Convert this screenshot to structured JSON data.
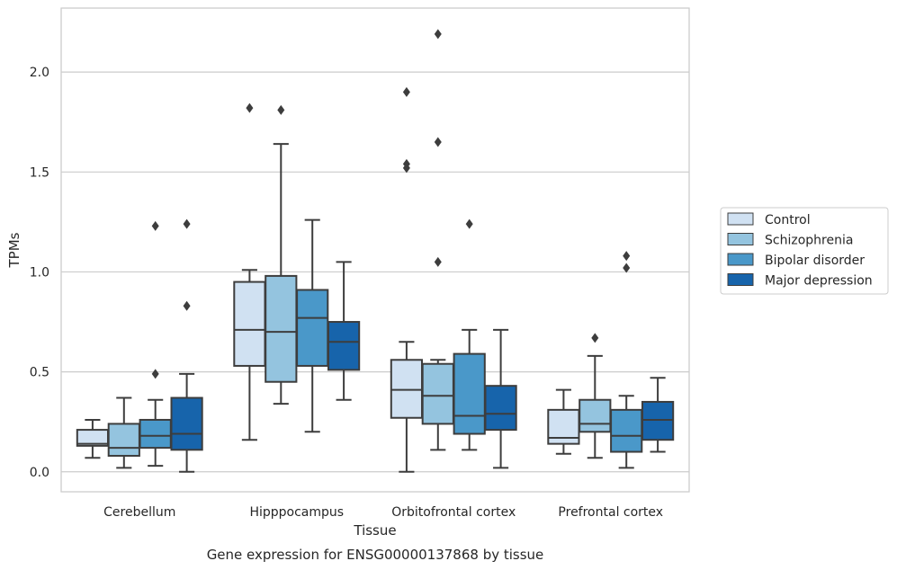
{
  "chart_data": {
    "type": "box",
    "title": "",
    "caption": "Gene expression for ENSG00000137868 by tissue",
    "xlabel": "Tissue",
    "ylabel": "TPMs",
    "ylim": [
      -0.1,
      2.32
    ],
    "yticks": [
      0.0,
      0.5,
      1.0,
      1.5,
      2.0
    ],
    "ytick_labels": [
      "0.0",
      "0.5",
      "1.0",
      "1.5",
      "2.0"
    ],
    "grid": true,
    "legend_position": "right",
    "categories": [
      "Cerebellum",
      "Hipppocampus",
      "Orbitofrontal cortex",
      "Prefrontal cortex"
    ],
    "series": [
      {
        "name": "Control",
        "color": "#d0e1f2",
        "boxes": [
          {
            "whislo": 0.07,
            "q1": 0.13,
            "med": 0.14,
            "q3": 0.21,
            "whishi": 0.26,
            "fliers": []
          },
          {
            "whislo": 0.16,
            "q1": 0.53,
            "med": 0.71,
            "q3": 0.95,
            "whishi": 1.01,
            "fliers": [
              1.82
            ]
          },
          {
            "whislo": 0.0,
            "q1": 0.27,
            "med": 0.41,
            "q3": 0.56,
            "whishi": 0.65,
            "fliers": [
              1.9,
              1.54,
              1.52
            ]
          },
          {
            "whislo": 0.09,
            "q1": 0.14,
            "med": 0.17,
            "q3": 0.31,
            "whishi": 0.41,
            "fliers": []
          }
        ]
      },
      {
        "name": "Schizophrenia",
        "color": "#94c4df",
        "boxes": [
          {
            "whislo": 0.02,
            "q1": 0.08,
            "med": 0.12,
            "q3": 0.24,
            "whishi": 0.37,
            "fliers": []
          },
          {
            "whislo": 0.34,
            "q1": 0.45,
            "med": 0.7,
            "q3": 0.98,
            "whishi": 1.64,
            "fliers": [
              1.81
            ]
          },
          {
            "whislo": 0.11,
            "q1": 0.24,
            "med": 0.38,
            "q3": 0.54,
            "whishi": 0.56,
            "fliers": [
              2.19,
              1.65,
              1.05
            ]
          },
          {
            "whislo": 0.07,
            "q1": 0.2,
            "med": 0.24,
            "q3": 0.36,
            "whishi": 0.58,
            "fliers": [
              0.67
            ]
          }
        ]
      },
      {
        "name": "Bipolar disorder",
        "color": "#4a98c9",
        "boxes": [
          {
            "whislo": 0.03,
            "q1": 0.12,
            "med": 0.18,
            "q3": 0.26,
            "whishi": 0.36,
            "fliers": [
              1.23,
              0.49
            ]
          },
          {
            "whislo": 0.2,
            "q1": 0.53,
            "med": 0.77,
            "q3": 0.91,
            "whishi": 1.26,
            "fliers": []
          },
          {
            "whislo": 0.11,
            "q1": 0.19,
            "med": 0.28,
            "q3": 0.59,
            "whishi": 0.71,
            "fliers": [
              1.24
            ]
          },
          {
            "whislo": 0.02,
            "q1": 0.1,
            "med": 0.18,
            "q3": 0.31,
            "whishi": 0.38,
            "fliers": [
              1.08,
              1.02
            ]
          }
        ]
      },
      {
        "name": "Major depression",
        "color": "#1764ab",
        "boxes": [
          {
            "whislo": 0.0,
            "q1": 0.11,
            "med": 0.19,
            "q3": 0.37,
            "whishi": 0.49,
            "fliers": [
              1.24,
              0.83
            ]
          },
          {
            "whislo": 0.36,
            "q1": 0.51,
            "med": 0.65,
            "q3": 0.75,
            "whishi": 1.05,
            "fliers": []
          },
          {
            "whislo": 0.02,
            "q1": 0.21,
            "med": 0.29,
            "q3": 0.43,
            "whishi": 0.71,
            "fliers": []
          },
          {
            "whislo": 0.1,
            "q1": 0.16,
            "med": 0.26,
            "q3": 0.35,
            "whishi": 0.47,
            "fliers": []
          }
        ]
      }
    ]
  }
}
